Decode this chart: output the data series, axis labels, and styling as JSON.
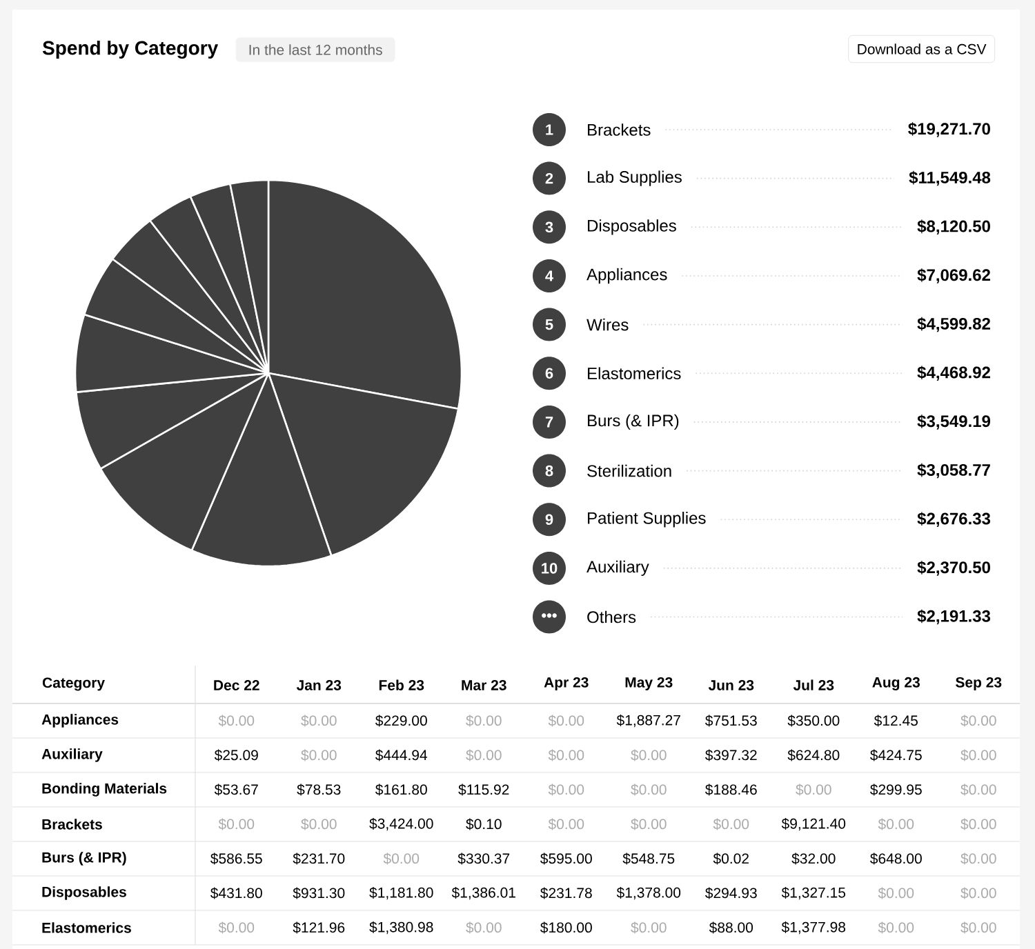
{
  "chart_data": [
    {
      "type": "pie",
      "title": "Spend by Category",
      "subtitle": "In the last 12 months",
      "legend": "right",
      "categories": [
        "Brackets",
        "Lab Supplies",
        "Disposables",
        "Appliances",
        "Wires",
        "Elastomerics",
        "Burs (& IPR)",
        "Sterilization",
        "Patient Supplies",
        "Auxiliary",
        "Others"
      ],
      "values": [
        19271.7,
        11549.48,
        8120.5,
        7069.62,
        4599.82,
        4468.92,
        3549.19,
        3058.77,
        2676.33,
        2370.5,
        2191.33
      ],
      "value_labels": [
        "$19,271.70",
        "$11,549.48",
        "$8,120.50",
        "$7,069.62",
        "$4,599.82",
        "$4,468.92",
        "$3,549.19",
        "$3,058.77",
        "$2,676.33",
        "$2,370.50",
        "$2,191.33"
      ],
      "colors": [
        "#404040",
        "#404040",
        "#404040",
        "#404040",
        "#404040",
        "#404040",
        "#404040",
        "#404040",
        "#404040",
        "#404040",
        "#404040"
      ],
      "annotations": [
        "Download as a CSV",
        "1",
        "2",
        "3",
        "4",
        "5",
        "6",
        "7",
        "8",
        "9",
        "10",
        "•••"
      ]
    },
    {
      "type": "heatmap",
      "ylabel": "Category",
      "categories": [
        "Dec 22",
        "Jan 23",
        "Feb 23",
        "Mar 23",
        "Apr 23",
        "May 23",
        "Jun 23",
        "Jul 23",
        "Aug 23",
        "Sep 23"
      ],
      "y_categories": [
        "Appliances",
        "Auxiliary",
        "Bonding Materials",
        "Brackets",
        "Burs (& IPR)",
        "Disposables",
        "Elastomerics"
      ],
      "cells": [
        [
          0,
          0,
          229.0,
          0,
          0,
          1887.27,
          751.53,
          350.0,
          12.45,
          0
        ],
        [
          25.09,
          0,
          444.94,
          0,
          0,
          0,
          397.32,
          624.8,
          424.75,
          0
        ],
        [
          53.67,
          78.53,
          161.8,
          115.92,
          0,
          0,
          188.46,
          0,
          299.95,
          0
        ],
        [
          0,
          0,
          3424.0,
          0.1,
          0,
          0,
          0,
          9121.4,
          0,
          0
        ],
        [
          586.55,
          231.7,
          0,
          330.37,
          595.0,
          548.75,
          0.02,
          32.0,
          648.0,
          0
        ],
        [
          431.8,
          931.3,
          1181.8,
          1386.01,
          231.78,
          1378.0,
          294.93,
          1327.15,
          0,
          0
        ],
        [
          0,
          121.96,
          1380.98,
          0,
          180.0,
          0,
          88.0,
          1377.98,
          0,
          0
        ]
      ],
      "cell_labels": [
        [
          "$0.00",
          "$0.00",
          "$229.00",
          "$0.00",
          "$0.00",
          "$1,887.27",
          "$751.53",
          "$350.00",
          "$12.45",
          "$0.00"
        ],
        [
          "$25.09",
          "$0.00",
          "$444.94",
          "$0.00",
          "$0.00",
          "$0.00",
          "$397.32",
          "$624.80",
          "$424.75",
          "$0.00"
        ],
        [
          "$53.67",
          "$78.53",
          "$161.80",
          "$115.92",
          "$0.00",
          "$0.00",
          "$188.46",
          "$0.00",
          "$299.95",
          "$0.00"
        ],
        [
          "$0.00",
          "$0.00",
          "$3,424.00",
          "$0.10",
          "$0.00",
          "$0.00",
          "$0.00",
          "$9,121.40",
          "$0.00",
          "$0.00"
        ],
        [
          "$586.55",
          "$231.70",
          "$0.00",
          "$330.37",
          "$595.00",
          "$548.75",
          "$0.02",
          "$32.00",
          "$648.00",
          "$0.00"
        ],
        [
          "$431.80",
          "$931.30",
          "$1,181.80",
          "$1,386.01",
          "$231.78",
          "$1,378.00",
          "$294.93",
          "$1,327.15",
          "$0.00",
          "$0.00"
        ],
        [
          "$0.00",
          "$121.96",
          "$1,380.98",
          "$0.00",
          "$180.00",
          "$0.00",
          "$88.00",
          "$1,377.98",
          "$0.00",
          "$0.00"
        ]
      ]
    }
  ]
}
